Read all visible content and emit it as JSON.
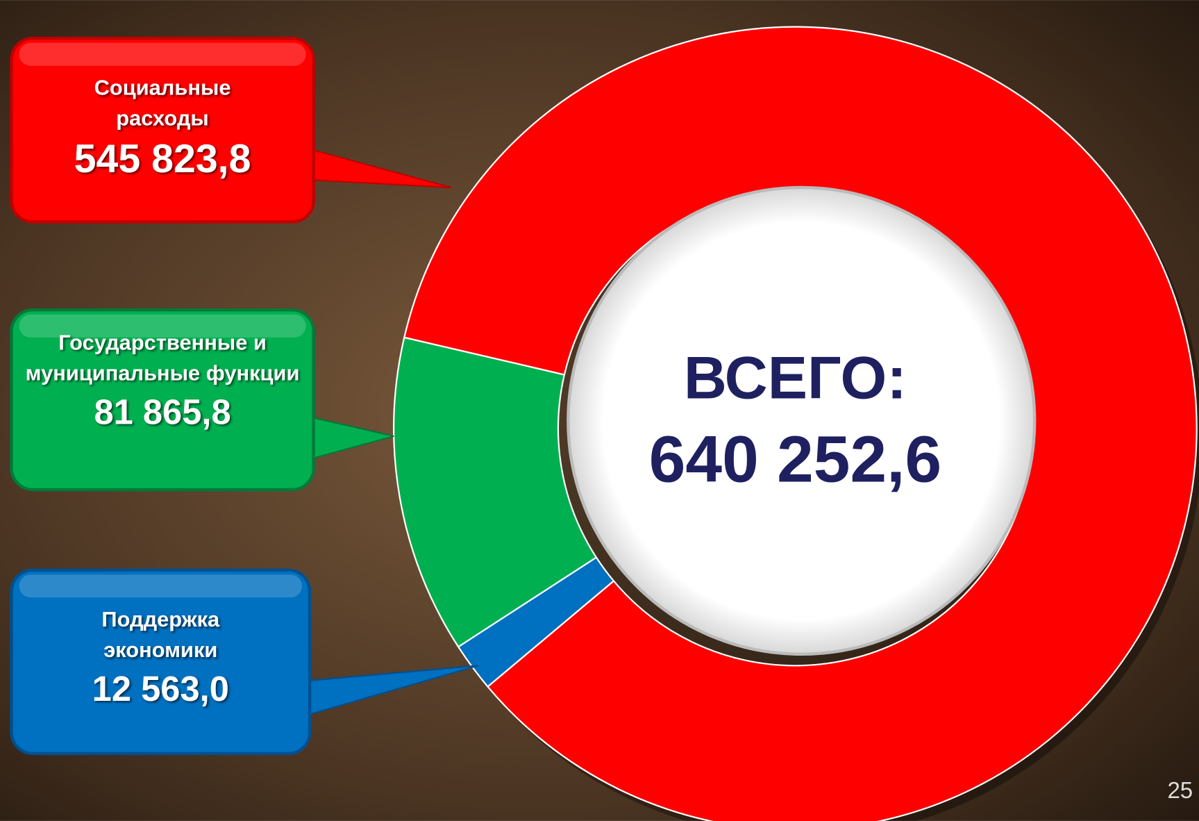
{
  "chart_data": {
    "type": "donut",
    "categories": [
      "Социальные расходы",
      "Государственные и муниципальные функции",
      "Поддержка экономики"
    ],
    "values": [
      545823.8,
      81865.8,
      12563.0
    ],
    "value_labels": [
      "545 823,8",
      "81 865,8",
      "12 563,0"
    ],
    "colors": [
      "#ff0000",
      "#00b050",
      "#0070c0"
    ],
    "center_label": "ВСЕГО:",
    "total": {
      "value": 640252.6,
      "label": "640 252,6"
    },
    "page_number": 25
  }
}
